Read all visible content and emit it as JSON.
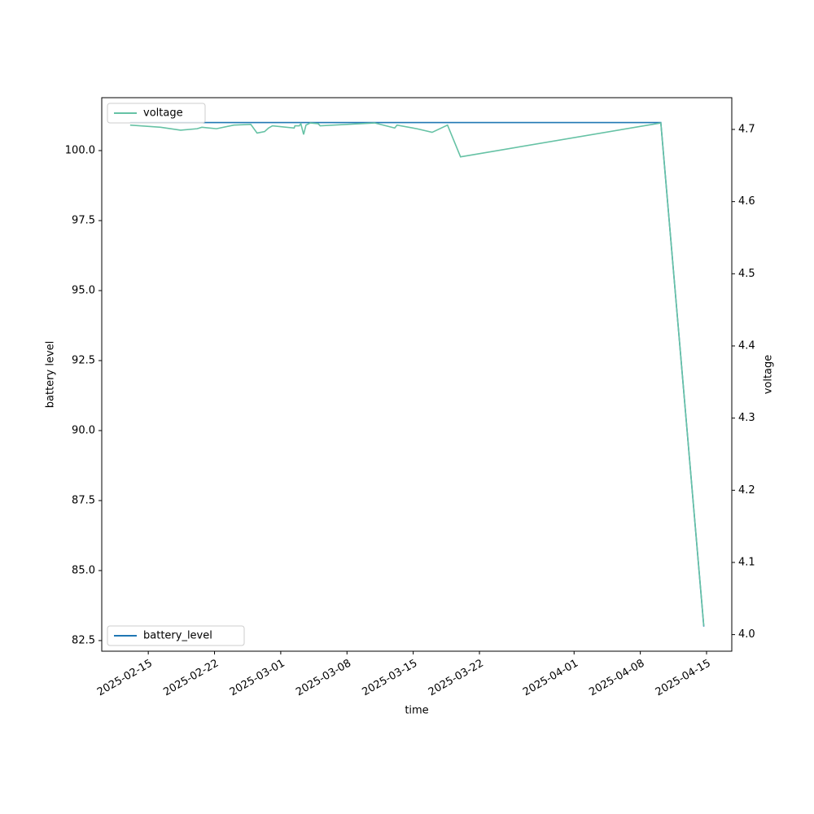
{
  "chart_data": {
    "type": "line",
    "xlabel": "time",
    "ylabel": "battery level",
    "y2label": "voltage",
    "xlim": [
      "2025-02-10T02:00",
      "2025-04-17T16:00"
    ],
    "xticks": [
      "2025-02-15",
      "2025-02-22",
      "2025-03-01",
      "2025-03-08",
      "2025-03-15",
      "2025-03-22",
      "2025-04-01",
      "2025-04-08",
      "2025-04-15"
    ],
    "ylim": [
      82.12,
      101.89
    ],
    "yticks": [
      82.5,
      {
        "value": 85,
        "label": "85.0"
      },
      87.5,
      {
        "value": 90,
        "label": "90.0"
      },
      92.5,
      {
        "value": 95,
        "label": "95.0"
      },
      97.5,
      {
        "value": 100,
        "label": "100.0"
      }
    ],
    "y2lim": [
      3.977,
      4.744
    ],
    "y2ticks": [
      {
        "value": 4,
        "label": "4.0"
      },
      4.1,
      4.2,
      4.3,
      4.4,
      4.5,
      4.6,
      4.7
    ],
    "legend_y": "lower left",
    "legend_y2": "upper left",
    "series": [
      {
        "name": "battery_level",
        "color": "#1f77b4",
        "x": [
          "2025-02-13T02:00",
          "2025-04-10T04:00",
          "2025-04-14T17:00"
        ],
        "values": [
          101,
          101,
          83
        ]
      },
      {
        "name": "voltage",
        "color": "#66c2a5",
        "axis": "y2",
        "x": [
          "2025-02-13T02:00",
          "2025-02-16T07:00",
          "2025-02-18T10:00",
          "2025-02-20T04:00",
          "2025-02-20T16:00",
          "2025-02-22T05:00",
          "2025-02-24T01:00",
          "2025-02-25T20:00",
          "2025-02-26T12:00",
          "2025-02-27T07:00",
          "2025-02-27T17:00",
          "2025-02-28T03:00",
          "2025-03-02T10:00",
          "2025-03-02T12:00",
          "2025-03-02T23:00",
          "2025-03-03T03:00",
          "2025-03-03T10:00",
          "2025-03-03T16:00",
          "2025-03-04T03:00",
          "2025-03-04T23:00",
          "2025-03-05T04:00",
          "2025-03-10T22:00",
          "2025-03-13T01:00",
          "2025-03-13T07:00",
          "2025-03-15T09:00",
          "2025-03-17T00:00",
          "2025-03-18T15:00",
          "2025-03-20T00:00",
          "2025-04-10T04:00",
          "2025-04-14T17:00"
        ],
        "values": [
          4.706,
          4.703,
          4.699,
          4.701,
          4.703,
          4.701,
          4.706,
          4.707,
          4.695,
          4.697,
          4.702,
          4.705,
          4.702,
          4.705,
          4.705,
          4.708,
          4.693,
          4.706,
          4.709,
          4.708,
          4.705,
          4.709,
          4.702,
          4.706,
          4.701,
          4.696,
          4.706,
          4.662,
          4.709,
          4.012
        ]
      }
    ]
  }
}
